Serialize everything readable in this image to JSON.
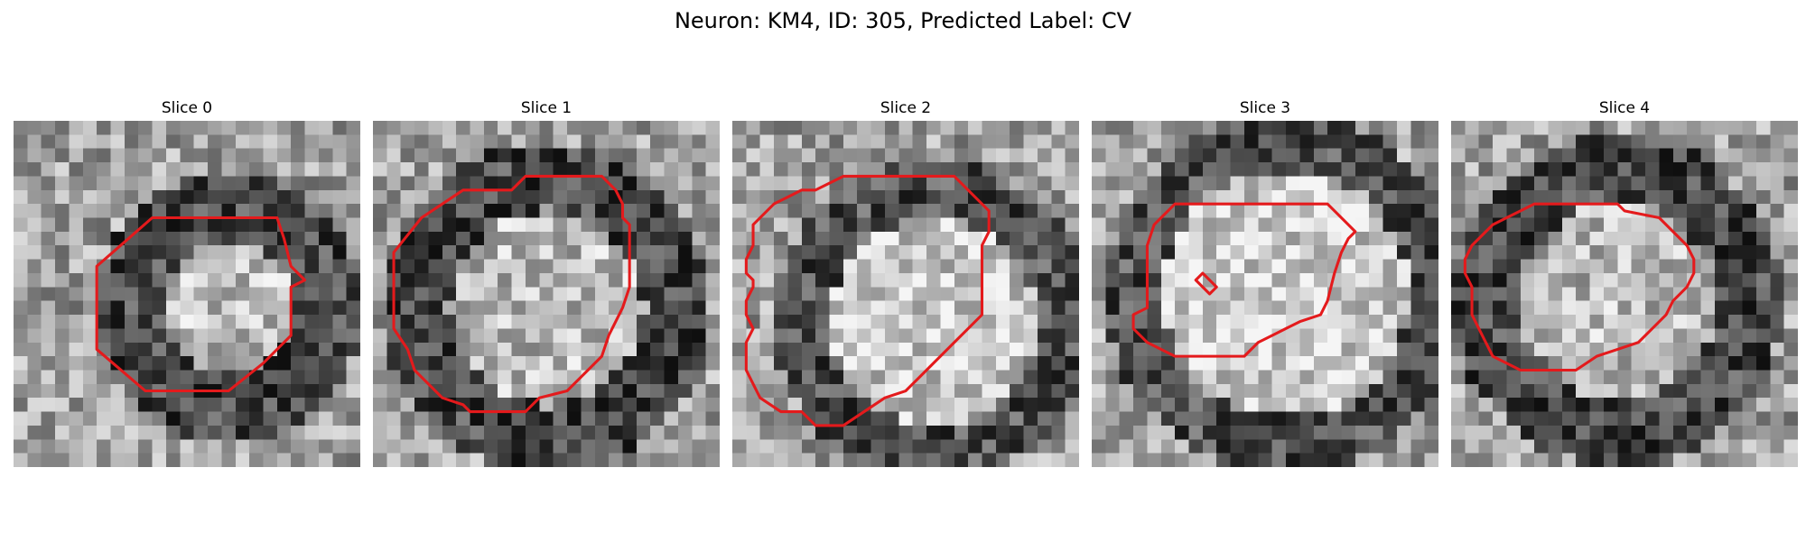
{
  "figure": {
    "title": "Neuron: KM4, ID: 305, Predicted Label: CV"
  },
  "panels": [
    {
      "title": "Slice 0",
      "seed": 11,
      "ring": {
        "cx": 15.5,
        "cy": 13.5,
        "r": 7.0,
        "thickness": 2.5,
        "ring_value": 70,
        "inner_value": 190
      },
      "contour": [
        [
          19,
          7
        ],
        [
          10,
          7
        ],
        [
          6,
          10.5
        ],
        [
          6,
          16.5
        ],
        [
          9.5,
          19.5
        ],
        [
          15.5,
          19.5
        ],
        [
          18,
          17.5
        ],
        [
          20,
          15.5
        ],
        [
          20,
          12
        ],
        [
          21,
          11.5
        ],
        [
          20,
          10.5
        ],
        [
          19.5,
          8.5
        ]
      ],
      "extra_contours": []
    },
    {
      "title": "Slice 1",
      "seed": 23,
      "ring": {
        "cx": 12.5,
        "cy": 13.5,
        "r": 9.5,
        "thickness": 2.5,
        "ring_value": 70,
        "inner_value": 185
      },
      "contour": [
        [
          13,
          4
        ],
        [
          16.5,
          4
        ],
        [
          17.5,
          5
        ],
        [
          18,
          6
        ],
        [
          18,
          7
        ],
        [
          18.5,
          7.5
        ],
        [
          18.5,
          10
        ],
        [
          18.5,
          12
        ],
        [
          18,
          13.5
        ],
        [
          17.5,
          14.5
        ],
        [
          17,
          15.5
        ],
        [
          16.5,
          17
        ],
        [
          15,
          18.5
        ],
        [
          14,
          19.5
        ],
        [
          12,
          20
        ],
        [
          11,
          21
        ],
        [
          7,
          21
        ],
        [
          6.5,
          20.5
        ],
        [
          5,
          20
        ],
        [
          3,
          18
        ],
        [
          2.5,
          16.5
        ],
        [
          1.5,
          15
        ],
        [
          1.5,
          9.5
        ],
        [
          3.5,
          7
        ],
        [
          5,
          6
        ],
        [
          6.5,
          5
        ],
        [
          10,
          5
        ],
        [
          10.5,
          4.5
        ],
        [
          11,
          4
        ]
      ],
      "extra_contours": []
    },
    {
      "title": "Slice 2",
      "seed": 37,
      "ring": {
        "cx": 14.5,
        "cy": 14.5,
        "r": 9.5,
        "thickness": 2.0,
        "ring_value": 80,
        "inner_value": 200
      },
      "contour": [
        [
          8,
          4
        ],
        [
          16,
          4
        ],
        [
          18,
          6
        ],
        [
          18.5,
          6.5
        ],
        [
          18.5,
          8
        ],
        [
          18,
          9
        ],
        [
          18,
          14
        ],
        [
          17,
          15
        ],
        [
          16,
          16
        ],
        [
          14,
          18
        ],
        [
          13,
          19
        ],
        [
          12.5,
          19.5
        ],
        [
          11,
          20
        ],
        [
          9.5,
          21
        ],
        [
          8,
          22
        ],
        [
          6,
          22
        ],
        [
          5,
          21
        ],
        [
          3.5,
          21
        ],
        [
          2,
          20
        ],
        [
          1.5,
          19
        ],
        [
          1,
          18
        ],
        [
          1,
          16
        ],
        [
          1.5,
          15
        ],
        [
          1,
          14
        ],
        [
          1,
          13
        ],
        [
          1.5,
          12
        ],
        [
          1.5,
          11.5
        ],
        [
          1,
          11
        ],
        [
          1,
          10
        ],
        [
          1.5,
          9
        ],
        [
          1.5,
          7.5
        ],
        [
          3,
          6
        ],
        [
          4,
          5.5
        ],
        [
          5,
          5
        ],
        [
          6,
          5
        ],
        [
          7,
          4.5
        ]
      ],
      "extra_contours": []
    },
    {
      "title": "Slice 3",
      "seed": 53,
      "ring": {
        "cx": 14.0,
        "cy": 12.5,
        "r": 11.0,
        "thickness": 2.0,
        "ring_value": 80,
        "inner_value": 205
      },
      "contour": [
        [
          6,
          6
        ],
        [
          17,
          6
        ],
        [
          18.5,
          7.5
        ],
        [
          19,
          8
        ],
        [
          18.5,
          8.5
        ],
        [
          18,
          9.5
        ],
        [
          17.5,
          11
        ],
        [
          17,
          13
        ],
        [
          16.5,
          14
        ],
        [
          15,
          14.5
        ],
        [
          14,
          15
        ],
        [
          13,
          15.5
        ],
        [
          12,
          16
        ],
        [
          11,
          17
        ],
        [
          6,
          17
        ],
        [
          4,
          16
        ],
        [
          3.5,
          15.5
        ],
        [
          3,
          15
        ],
        [
          3,
          14
        ],
        [
          4,
          13.5
        ],
        [
          4,
          9
        ],
        [
          4.5,
          7.5
        ],
        [
          5,
          7
        ]
      ],
      "extra_contours": [
        [
          [
            7.5,
            11.5
          ],
          [
            8,
            11
          ],
          [
            9,
            12
          ],
          [
            8.5,
            12.5
          ]
        ]
      ]
    },
    {
      "title": "Slice 4",
      "seed": 71,
      "ring": {
        "cx": 12.0,
        "cy": 13.0,
        "r": 9.5,
        "thickness": 2.5,
        "ring_value": 70,
        "inner_value": 185
      },
      "contour": [
        [
          8,
          6
        ],
        [
          12,
          6
        ],
        [
          12.5,
          6.5
        ],
        [
          15,
          7
        ],
        [
          16,
          8
        ],
        [
          17,
          9
        ],
        [
          17.5,
          10
        ],
        [
          17.5,
          11
        ],
        [
          17,
          12
        ],
        [
          16,
          13
        ],
        [
          15.5,
          14
        ],
        [
          14.5,
          15
        ],
        [
          13.5,
          16
        ],
        [
          12,
          16.5
        ],
        [
          10.5,
          17
        ],
        [
          9,
          18
        ],
        [
          5,
          18
        ],
        [
          3,
          17
        ],
        [
          2.5,
          16
        ],
        [
          2,
          15
        ],
        [
          1.5,
          14
        ],
        [
          1.5,
          12
        ],
        [
          1,
          11
        ],
        [
          1,
          10
        ],
        [
          1.5,
          9
        ],
        [
          2.5,
          8
        ],
        [
          3,
          7.5
        ],
        [
          4,
          7
        ],
        [
          5,
          6.5
        ],
        [
          6,
          6
        ]
      ],
      "extra_contours": []
    }
  ],
  "colors": {
    "contour": "#e41a1c",
    "background": "#ffffff"
  }
}
